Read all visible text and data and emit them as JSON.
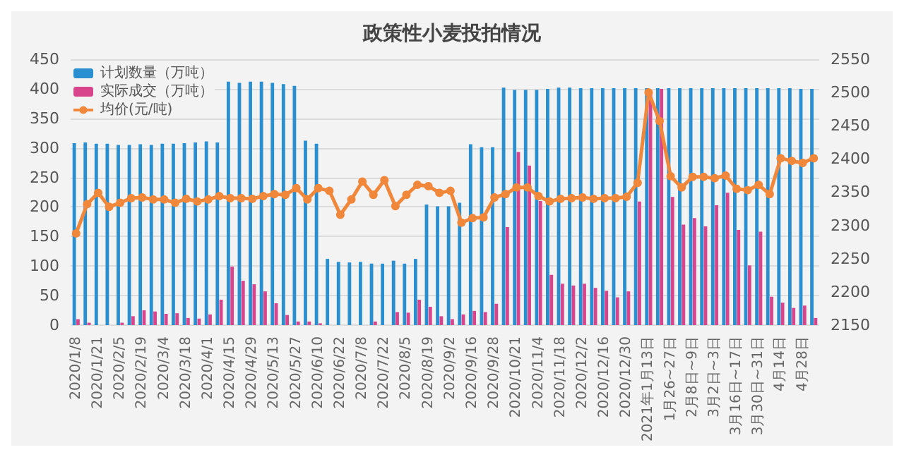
{
  "chart_data": {
    "type": "bar",
    "title": "政策性小麦投拍情况",
    "categories": [
      "2020/1/8",
      null,
      "2020/1/21",
      null,
      "2020/2/5",
      null,
      "2020/2/19",
      null,
      "2020/3/4",
      null,
      "2020/3/18",
      null,
      "2020/4/1",
      null,
      "2020/4/15",
      null,
      "2020/4/29",
      null,
      "2020/5/13",
      null,
      "2020/5/27",
      null,
      "2020/6/10",
      null,
      "2020/6/22",
      null,
      "2020/7/8",
      null,
      "2020/7/22",
      null,
      "2020/8/5",
      null,
      "2020/8/19",
      null,
      "2020/9/2",
      null,
      "2020/9/16",
      null,
      "2020/9/28",
      null,
      "2020/10/21",
      null,
      "2020/11/4",
      null,
      "2020/11/18",
      null,
      "2020/12/2",
      null,
      "2020/12/16",
      null,
      "2020/12/30",
      null,
      "2021年1月13日",
      null,
      "1月26~27日",
      null,
      "2月8日~9日",
      null,
      "3月2日~3日",
      null,
      "3月16日~17日",
      null,
      "3月30日~31日",
      null,
      "4月14日",
      null,
      "4月28日",
      null
    ],
    "series": [
      {
        "name": "计划数量（万吨）",
        "color": "#2a8fd0",
        "values": [
          308,
          309,
          307,
          307,
          305,
          305,
          306,
          305,
          307,
          307,
          308,
          309,
          311,
          309,
          412,
          410,
          412,
          412,
          410,
          408,
          405,
          312,
          307,
          112,
          107,
          106,
          107,
          104,
          104,
          109,
          104,
          112,
          204,
          201,
          201,
          207,
          306,
          301,
          301,
          402,
          398,
          398,
          398,
          400,
          402,
          402,
          401,
          401,
          401,
          401,
          401,
          401,
          401,
          401,
          401,
          401,
          401,
          401,
          401,
          401,
          401,
          401,
          401,
          401,
          401,
          401,
          400,
          400
        ]
      },
      {
        "name": "实际成交（万吨）",
        "color": "#d9458c",
        "values": [
          10,
          4,
          null,
          null,
          4,
          15,
          25,
          23,
          19,
          20,
          12,
          11,
          18,
          43,
          99,
          75,
          69,
          57,
          37,
          17,
          6,
          6,
          3,
          null,
          null,
          null,
          null,
          6,
          null,
          22,
          21,
          43,
          31,
          15,
          10,
          18,
          24,
          22,
          36,
          166,
          293,
          270,
          210,
          85,
          70,
          67,
          70,
          63,
          58,
          47,
          57,
          209,
          395,
          400,
          217,
          170,
          181,
          167,
          203,
          224,
          161,
          101,
          158,
          48,
          38,
          29,
          33,
          12
        ]
      },
      {
        "name": "均价(元/吨)",
        "type": "line",
        "axis": "y2",
        "color": "#f0873a",
        "values": [
          2288,
          2332,
          2349,
          2328,
          2334,
          2341,
          2342,
          2339,
          2339,
          2334,
          2340,
          2336,
          2339,
          2344,
          2341,
          2341,
          2340,
          2344,
          2347,
          2346,
          2356,
          2339,
          2356,
          2352,
          2316,
          2339,
          2366,
          2346,
          2368,
          2329,
          2346,
          2361,
          2359,
          2349,
          2352,
          2304,
          2311,
          2312,
          2342,
          2347,
          2357,
          2357,
          2344,
          2336,
          2340,
          2341,
          2342,
          2340,
          2341,
          2341,
          2343,
          2364,
          2500,
          2457,
          2374,
          2357,
          2373,
          2373,
          2371,
          2375,
          2355,
          2353,
          2361,
          2347,
          2401,
          2397,
          2394,
          2401
        ]
      }
    ],
    "ylim": [
      0,
      450
    ],
    "yticks": [
      0,
      50,
      100,
      150,
      200,
      250,
      300,
      350,
      400,
      450
    ],
    "y2lim": [
      2150,
      2550
    ],
    "y2ticks": [
      2150,
      2200,
      2250,
      2300,
      2350,
      2400,
      2450,
      2500,
      2550
    ],
    "grid": "y",
    "legend": "top left",
    "marker": "circle"
  }
}
